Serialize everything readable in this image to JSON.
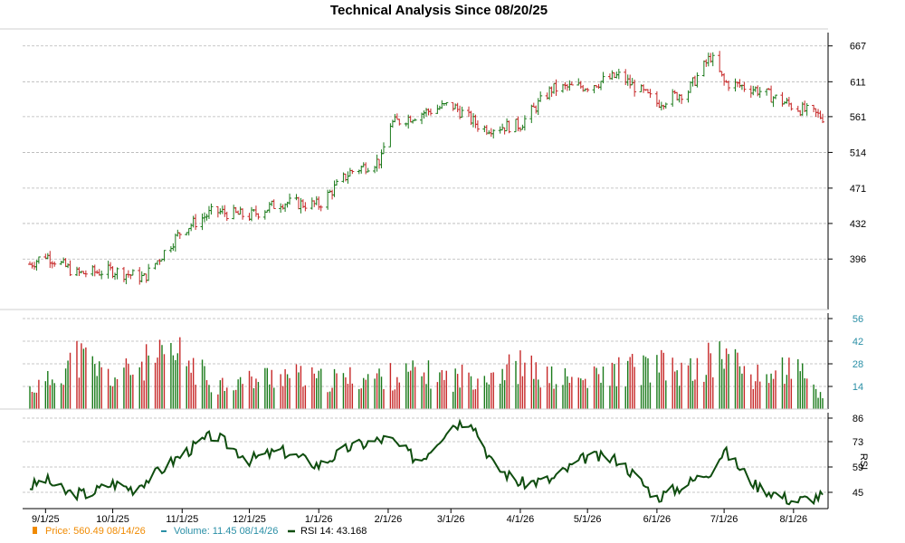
{
  "title": "Technical Analysis Since 08/20/25",
  "colors": {
    "up": "#1a7a1a",
    "down": "#c62828",
    "rsi": "#0f4d0f",
    "price_legend": "#f08a00",
    "volume_legend": "#2a8fa6",
    "grid": "#b5b5b5"
  },
  "legend": {
    "price": "Price: 560.49  08/14/26",
    "volume": "Volume: 11.45  08/14/26",
    "rsi": "RSI 14: 43.168"
  },
  "chart_data": [
    {
      "type": "candlestick",
      "name": "price",
      "yticks": [
        "396",
        "432",
        "471",
        "514",
        "561",
        "611",
        "667"
      ],
      "ylim": [
        350,
        680
      ],
      "scale": "log",
      "dates": [
        "8/25/25",
        "9/1/25",
        "9/15/25",
        "10/1/25",
        "10/15/25",
        "11/1/25",
        "11/15/25",
        "12/1/25",
        "12/15/25",
        "1/1/26",
        "1/15/26",
        "1/29/26",
        "2/1/26",
        "2/15/26",
        "3/1/26",
        "3/15/26",
        "4/1/26",
        "4/15/26",
        "5/1/26",
        "5/15/26",
        "6/1/26",
        "6/15/26",
        "6/25/26",
        "7/1/26",
        "7/15/26",
        "8/1/26",
        "8/14/26"
      ],
      "close": [
        391,
        400,
        382,
        385,
        378,
        425,
        445,
        440,
        455,
        452,
        490,
        505,
        550,
        565,
        578,
        545,
        550,
        600,
        605,
        620,
        580,
        598,
        650,
        610,
        600,
        575,
        560.49
      ]
    },
    {
      "type": "bar",
      "name": "volume",
      "yticks": [
        "14",
        "28",
        "42",
        "56"
      ],
      "ylim": [
        0,
        56
      ],
      "dates": [
        "8/25/25",
        "9/1/25",
        "9/15/25",
        "10/1/25",
        "10/15/25",
        "11/1/25",
        "11/15/25",
        "12/1/25",
        "12/15/25",
        "1/1/26",
        "1/15/26",
        "2/1/26",
        "2/15/26",
        "3/1/26",
        "3/15/26",
        "4/1/26",
        "4/15/26",
        "5/1/26",
        "5/15/26",
        "6/1/26",
        "6/15/26",
        "7/1/26",
        "7/15/26",
        "8/1/26",
        "8/14/26"
      ],
      "values": [
        20,
        25,
        52,
        30,
        45,
        52,
        25,
        28,
        35,
        28,
        30,
        32,
        35,
        30,
        35,
        42,
        30,
        28,
        38,
        42,
        35,
        55,
        30,
        42,
        11.45
      ]
    },
    {
      "type": "line",
      "name": "RSI 14",
      "ylabel": "RSI",
      "yticks": [
        "45",
        "59",
        "73",
        "86"
      ],
      "ylim": [
        36,
        86
      ],
      "dates": [
        "8/25/25",
        "9/1/25",
        "9/10/25",
        "9/20/25",
        "10/1/25",
        "10/10/25",
        "10/20/25",
        "11/1/25",
        "11/15/25",
        "12/1/25",
        "12/15/25",
        "1/1/26",
        "1/15/26",
        "2/1/26",
        "2/15/26",
        "3/1/26",
        "3/10/26",
        "3/20/26",
        "4/1/26",
        "4/15/26",
        "5/1/26",
        "5/15/26",
        "6/1/26",
        "6/15/26",
        "6/25/26",
        "7/1/26",
        "7/15/26",
        "8/1/26",
        "8/14/26"
      ],
      "values": [
        48,
        52,
        45,
        44,
        50,
        47,
        55,
        66,
        77,
        63,
        68,
        60,
        70,
        75,
        62,
        82,
        85,
        60,
        50,
        52,
        65,
        63,
        42,
        50,
        57,
        68,
        49,
        40,
        43.168
      ]
    }
  ],
  "xaxis": {
    "labels": [
      "9/1/25",
      "10/1/25",
      "11/1/25",
      "12/1/25",
      "1/1/26",
      "2/1/26",
      "3/1/26",
      "4/1/26",
      "5/1/26",
      "6/1/26",
      "7/1/26",
      "8/1/26"
    ]
  }
}
